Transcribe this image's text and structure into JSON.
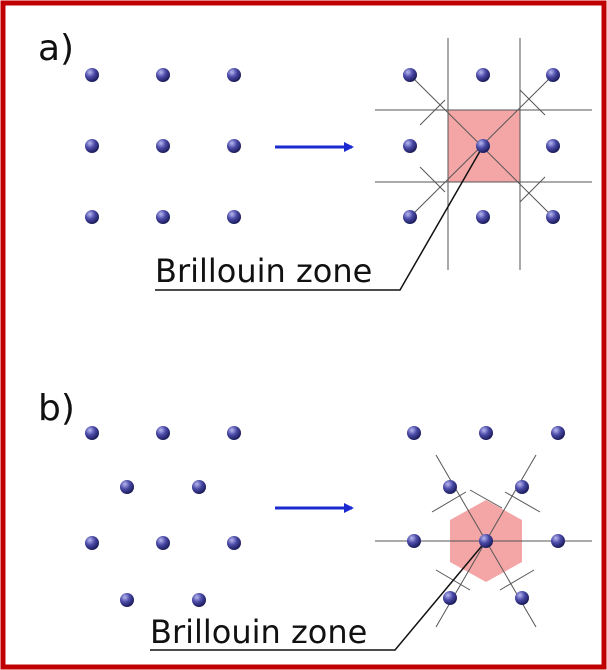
{
  "panels": [
    {
      "label": "a)",
      "zone_label": "Brillouin zone"
    },
    {
      "label": "b)",
      "zone_label": "Brillouin zone"
    }
  ]
}
